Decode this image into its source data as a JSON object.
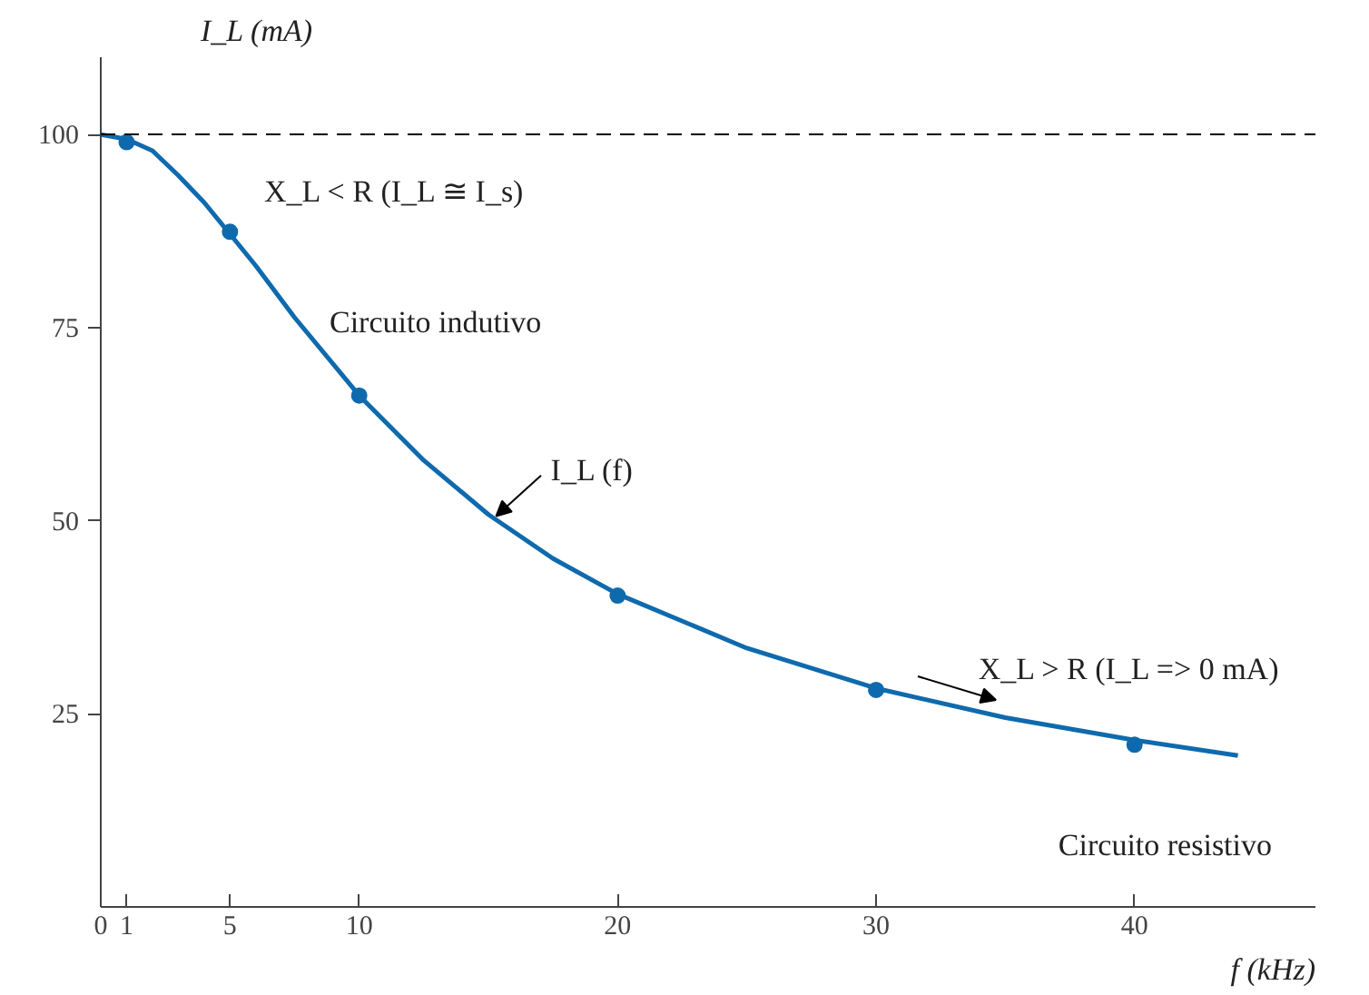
{
  "chart_data": {
    "type": "line",
    "xlabel": "f (kHz)",
    "ylabel": "I_L (mA)",
    "xlim": [
      0,
      47
    ],
    "ylim": [
      0,
      110
    ],
    "xticks": [
      0,
      1,
      5,
      10,
      20,
      30,
      40
    ],
    "yticks": [
      25,
      50,
      75,
      100
    ],
    "grid": false,
    "series": [
      {
        "color": "#0f6aad",
        "x": [
          0,
          1,
          2,
          3,
          4,
          5,
          6,
          7.5,
          10,
          12.5,
          15,
          17.5,
          20,
          25,
          30,
          35,
          40,
          44
        ],
        "values": [
          100,
          99.4,
          97.9,
          94.7,
          91.2,
          87.1,
          83,
          76.3,
          66.2,
          57.8,
          50.8,
          45.1,
          40.5,
          33.5,
          28.3,
          24.5,
          21.6,
          19.6
        ]
      },
      {
        "type": "scatter",
        "color": "#0f6aad",
        "marker": "circle",
        "x": [
          1,
          5,
          10,
          20,
          30,
          40
        ],
        "values": [
          99,
          87.4,
          66.2,
          40.3,
          28.1,
          21
        ]
      }
    ],
    "ref_lines": [
      {
        "axis": "y",
        "value": 100,
        "line_style": "dashed",
        "color": "#000000"
      }
    ],
    "annotations": [
      "X_L < R (I_L ≅ I_s)",
      "Circuito indutivo",
      {
        "text": "I_L (f)",
        "x": 15.3,
        "y": 50.6
      },
      "X_L > R (I_L => 0 mA)",
      "Circuito resistivo"
    ]
  }
}
